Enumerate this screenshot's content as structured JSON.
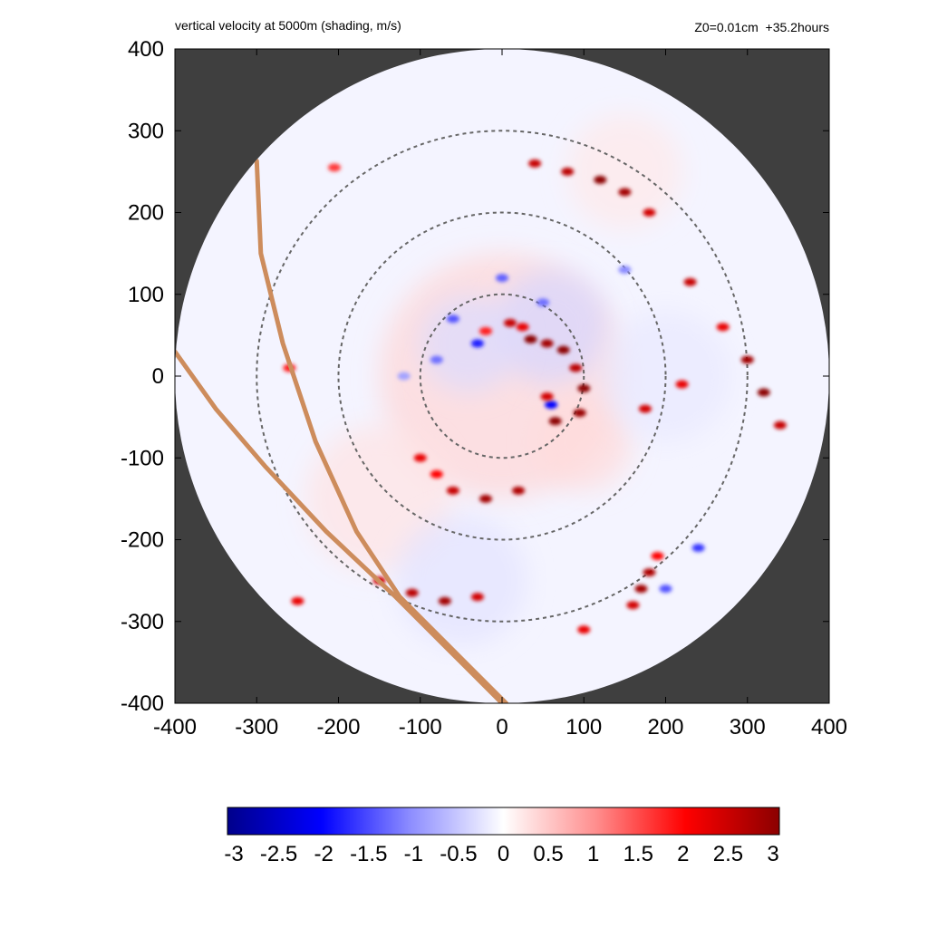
{
  "header": {
    "title": "vertical velocity at 5000m (shading, m/s)",
    "info": "Z0=0.01cm  +35.2hours"
  },
  "colors": {
    "background": "#ffffff",
    "mask": "#3f3f3f",
    "range_rings": "#666666",
    "track": "#cd8c5c",
    "colormap_negative": "#00008b",
    "colormap_mid_negative": "#0000ff",
    "colormap_zero": "#ffffff",
    "colormap_mid_positive": "#ff0000",
    "colormap_positive": "#8b0000"
  },
  "chart_data": {
    "type": "heatmap",
    "title": "vertical velocity at 5000m (shading, m/s)",
    "subtitle": "Z0=0.01cm  +35.2hours",
    "xlabel": "",
    "ylabel": "",
    "xlim": [
      -400,
      400
    ],
    "ylim": [
      -400,
      400
    ],
    "x_ticks": [
      "-400",
      "-300",
      "-200",
      "-100",
      "0",
      "100",
      "200",
      "300",
      "400"
    ],
    "y_ticks": [
      "400",
      "300",
      "200",
      "100",
      "0",
      "-100",
      "-200",
      "-300",
      "-400"
    ],
    "domain_radius": 400,
    "range_rings_radii": [
      100,
      200,
      300
    ],
    "colorbar": {
      "min": -3,
      "max": 3,
      "ticks": [
        "-3",
        "-2.5",
        "-2",
        "-1.5",
        "-1",
        "-0.5",
        "0",
        "0.5",
        "1",
        "1.5",
        "2",
        "2.5",
        "3"
      ]
    },
    "tracks": [
      {
        "points": [
          [
            -300,
            263
          ],
          [
            -295,
            150
          ],
          [
            -268,
            40
          ],
          [
            -228,
            -80
          ],
          [
            -178,
            -190
          ],
          [
            -125,
            -270
          ],
          [
            -60,
            -335
          ],
          [
            5,
            -400
          ]
        ]
      },
      {
        "points": [
          [
            -400,
            30
          ],
          [
            -350,
            -40
          ],
          [
            -290,
            -110
          ],
          [
            -215,
            -190
          ],
          [
            -130,
            -270
          ],
          [
            -70,
            -330
          ],
          [
            -20,
            -380
          ],
          [
            0,
            -400
          ]
        ]
      }
    ],
    "updraft_cells": [
      [
        35,
        45,
        3
      ],
      [
        55,
        40,
        2.8
      ],
      [
        75,
        32,
        3
      ],
      [
        90,
        10,
        2.6
      ],
      [
        100,
        -15,
        3
      ],
      [
        95,
        -45,
        2.9
      ],
      [
        65,
        -55,
        3
      ],
      [
        55,
        -25,
        2.4
      ],
      [
        25,
        60,
        2.2
      ],
      [
        10,
        65,
        2.5
      ],
      [
        -20,
        55,
        1.8
      ],
      [
        40,
        260,
        2.5
      ],
      [
        80,
        250,
        2.6
      ],
      [
        120,
        240,
        3
      ],
      [
        150,
        225,
        2.8
      ],
      [
        180,
        200,
        2.4
      ],
      [
        230,
        115,
        2.5
      ],
      [
        270,
        60,
        2.2
      ],
      [
        300,
        20,
        2.8
      ],
      [
        320,
        -20,
        3
      ],
      [
        340,
        -60,
        2.5
      ],
      [
        -100,
        -100,
        2.2
      ],
      [
        -60,
        -140,
        2.5
      ],
      [
        -20,
        -150,
        2.8
      ],
      [
        20,
        -140,
        2.7
      ],
      [
        -80,
        -120,
        2
      ],
      [
        -150,
        -250,
        2.4
      ],
      [
        -110,
        -265,
        2.6
      ],
      [
        -70,
        -275,
        2.8
      ],
      [
        -30,
        -270,
        2.4
      ],
      [
        -250,
        -275,
        2.2
      ],
      [
        180,
        -240,
        2.7
      ],
      [
        170,
        -260,
        2.8
      ],
      [
        160,
        -280,
        2.4
      ],
      [
        100,
        -310,
        2.2
      ],
      [
        190,
        -220,
        2
      ],
      [
        220,
        -10,
        2.2
      ],
      [
        175,
        -40,
        2.4
      ],
      [
        -260,
        10,
        1.8
      ],
      [
        -205,
        255,
        1.6
      ]
    ],
    "downdraft_cells": [
      [
        -30,
        40,
        -1.8
      ],
      [
        -60,
        70,
        -1.4
      ],
      [
        50,
        90,
        -1.2
      ],
      [
        0,
        120,
        -1.3
      ],
      [
        -80,
        20,
        -1.2
      ],
      [
        60,
        -35,
        -2
      ],
      [
        240,
        -210,
        -1.6
      ],
      [
        200,
        -260,
        -1.4
      ],
      [
        -120,
        0,
        -0.8
      ],
      [
        150,
        130,
        -1
      ]
    ]
  }
}
